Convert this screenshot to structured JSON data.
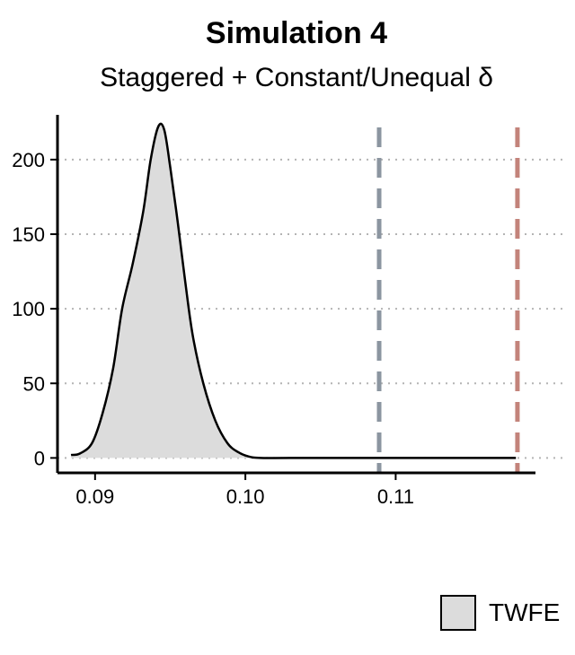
{
  "chart_data": {
    "type": "area",
    "title": "Simulation 4",
    "subtitle": "Staggered + Constant/Unequal δ",
    "xlabel": "",
    "ylabel": "",
    "xlim": [
      0.0875,
      0.1193
    ],
    "ylim": [
      -10,
      230
    ],
    "x_ticks": [
      0.09,
      0.1,
      0.11
    ],
    "x_tick_labels": [
      "0.09",
      "0.10",
      "0.11"
    ],
    "y_ticks": [
      0,
      50,
      100,
      150,
      200
    ],
    "y_tick_labels": [
      "0",
      "50",
      "100",
      "150",
      "200"
    ],
    "grid": "horizontal dotted",
    "legend_position": "bottom",
    "series": [
      {
        "name": "TWFE",
        "fill": "#dcdcdc",
        "x": [
          0.0884,
          0.089,
          0.0898,
          0.0905,
          0.0912,
          0.0918,
          0.0925,
          0.0932,
          0.0937,
          0.0942,
          0.0946,
          0.095,
          0.0955,
          0.096,
          0.0965,
          0.0972,
          0.098,
          0.0988,
          0.0995,
          0.1002,
          0.101,
          0.103,
          0.108,
          0.114,
          0.118
        ],
        "y": [
          2,
          3,
          10,
          30,
          60,
          100,
          130,
          165,
          200,
          222,
          220,
          195,
          158,
          118,
          82,
          50,
          25,
          10,
          4,
          1,
          0,
          0,
          0,
          0,
          0
        ]
      }
    ],
    "vlines": [
      {
        "x": 0.1089,
        "color": "#8b95a0",
        "style": "dashed"
      },
      {
        "x": 0.1181,
        "color": "#c3837b",
        "style": "dashed"
      }
    ]
  },
  "legend": {
    "label": "TWFE"
  }
}
